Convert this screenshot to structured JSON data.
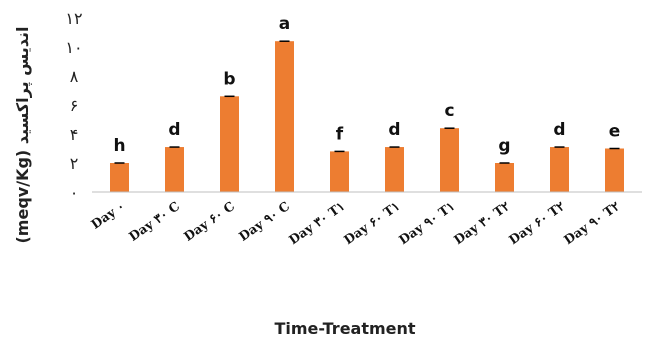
{
  "chart_data": {
    "type": "bar",
    "ylabel": "اندیس پراکسید (meqv/Kg)",
    "xlabel": "Time-Treatment",
    "categories": [
      "Day ۰",
      "Day ۳۰ C",
      "Day ۶۰ C",
      "Day ۹۰ C",
      "Day ۳۰ T۱",
      "Day ۶۰ T۱",
      "Day ۹۰ T۱",
      "Day ۳۰ T۲",
      "Day ۶۰ T۲",
      "Day ۹۰ T۲"
    ],
    "values": [
      2.0,
      3.1,
      6.6,
      10.4,
      2.8,
      3.1,
      4.4,
      2.0,
      3.1,
      3.0
    ],
    "data_labels": [
      "h",
      "d",
      "b",
      "a",
      "f",
      "d",
      "c",
      "g",
      "d",
      "e"
    ],
    "yticks": [
      "۰",
      "۲",
      "۴",
      "۶",
      "۸",
      "۱۰",
      "۱۲"
    ],
    "ylim": [
      0,
      12
    ],
    "grid": false,
    "bar_color": "#ED7D31",
    "error_bar_color": "#000000"
  }
}
